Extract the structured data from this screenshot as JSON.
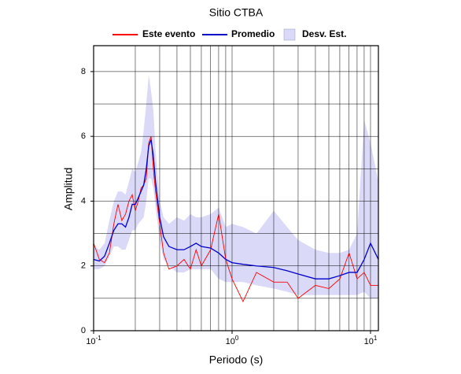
{
  "chart_data": {
    "type": "line",
    "title": "Sitio CTBA",
    "x_label": "Periodo (s)",
    "y_label": "Amplitud",
    "x_scale": "log",
    "xlim": [
      0.1,
      11.4
    ],
    "ylim": [
      0,
      8.8
    ],
    "xticks": [
      {
        "value": 0.1,
        "label": "10",
        "exponent": "-1"
      },
      {
        "value": 1,
        "label": "10",
        "exponent": "0"
      },
      {
        "value": 10,
        "label": "10",
        "exponent": "1"
      }
    ],
    "x_minor_ticks": [
      0.2,
      0.3,
      0.4,
      0.5,
      0.6,
      0.7,
      0.8,
      0.9,
      2,
      3,
      4,
      5,
      6,
      7,
      8,
      9
    ],
    "yticks": [
      0,
      2,
      4,
      6,
      8
    ],
    "y_minor_ticks": [
      1,
      3,
      5,
      7
    ],
    "grid": true,
    "x": [
      0.1,
      0.11,
      0.12,
      0.13,
      0.14,
      0.15,
      0.16,
      0.17,
      0.18,
      0.19,
      0.2,
      0.21,
      0.22,
      0.23,
      0.24,
      0.25,
      0.26,
      0.27,
      0.28,
      0.3,
      0.32,
      0.35,
      0.4,
      0.45,
      0.5,
      0.55,
      0.6,
      0.7,
      0.8,
      0.9,
      1.0,
      1.2,
      1.5,
      2.0,
      2.5,
      3.0,
      4.0,
      5.0,
      6.0,
      7.0,
      8.0,
      9.0,
      10.0,
      11.4
    ],
    "series": [
      {
        "name": "Este evento",
        "color": "#ff0000",
        "values": [
          2.7,
          2.2,
          2.1,
          2.4,
          3.3,
          3.9,
          3.4,
          3.6,
          4.0,
          4.2,
          3.7,
          4.0,
          4.4,
          4.5,
          4.7,
          5.8,
          6.0,
          5.0,
          4.3,
          3.3,
          2.4,
          1.9,
          2.0,
          2.2,
          1.9,
          2.5,
          2.0,
          2.5,
          3.6,
          2.2,
          1.6,
          0.9,
          1.8,
          1.5,
          1.5,
          1.0,
          1.4,
          1.3,
          1.6,
          2.4,
          1.6,
          1.8,
          1.4,
          1.4
        ]
      },
      {
        "name": "Promedio",
        "color": "#0000cc",
        "values": [
          2.2,
          2.15,
          2.3,
          2.7,
          3.1,
          3.3,
          3.3,
          3.2,
          3.5,
          3.9,
          3.9,
          4.1,
          4.3,
          4.5,
          5.0,
          5.7,
          5.9,
          5.4,
          4.6,
          3.5,
          2.9,
          2.6,
          2.5,
          2.5,
          2.6,
          2.7,
          2.6,
          2.55,
          2.4,
          2.2,
          2.1,
          2.05,
          2.0,
          1.95,
          1.85,
          1.75,
          1.6,
          1.6,
          1.7,
          1.8,
          1.8,
          2.2,
          2.7,
          2.2
        ]
      },
      {
        "name": "Desv. Est.",
        "type": "band",
        "color": "#dadaf8",
        "lower": [
          1.9,
          1.9,
          2.0,
          2.3,
          2.6,
          2.6,
          2.5,
          2.5,
          2.8,
          3.1,
          3.1,
          3.3,
          3.4,
          3.5,
          4.0,
          4.7,
          4.7,
          4.4,
          3.8,
          2.8,
          2.2,
          2.0,
          1.8,
          1.8,
          1.9,
          1.9,
          1.9,
          1.9,
          1.6,
          1.5,
          1.5,
          1.5,
          1.4,
          1.3,
          1.2,
          1.1,
          1.1,
          1.1,
          1.1,
          1.1,
          1.1,
          1.2,
          1.0,
          1.0
        ],
        "upper": [
          2.6,
          2.5,
          2.7,
          3.4,
          4.0,
          4.3,
          4.3,
          4.2,
          4.6,
          5.0,
          4.9,
          5.2,
          5.5,
          6.2,
          7.0,
          7.9,
          7.4,
          6.8,
          5.6,
          4.0,
          3.5,
          3.3,
          3.5,
          3.4,
          3.6,
          3.5,
          3.5,
          3.6,
          3.8,
          3.2,
          3.3,
          3.2,
          3.0,
          3.7,
          3.2,
          2.8,
          2.5,
          2.4,
          2.4,
          2.5,
          3.0,
          6.5,
          5.8,
          4.6
        ]
      }
    ]
  }
}
